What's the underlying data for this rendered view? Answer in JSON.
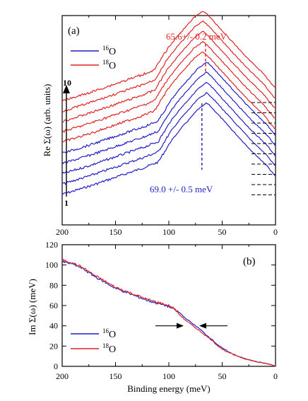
{
  "colors": {
    "o16": "#1f1fc8",
    "o18": "#e02424",
    "axis": "#000000",
    "baseline": "#000000"
  },
  "chart_data": [
    {
      "panel_label": "(a)",
      "type": "line",
      "xlabel": "",
      "ylabel": "Re Σ(ω) (arb. units)",
      "xlim": [
        200,
        0
      ],
      "x_ticks": [
        200,
        150,
        100,
        50,
        0
      ],
      "y_ticks": [],
      "legend": {
        "placement": "top-left",
        "entries": [
          {
            "isotope_mass": "16",
            "element": "O",
            "color_key": "o16"
          },
          {
            "isotope_mass": "18",
            "element": "O",
            "color_key": "o18"
          }
        ]
      },
      "annotations": {
        "o18_peak": {
          "text": "65.6+/- 0.2 meV",
          "energy": 65.6
        },
        "o16_peak": {
          "text": "69.0 +/- 0.5 meV",
          "energy": 69.0
        },
        "index_top": "10",
        "index_bottom": "1"
      },
      "x": [
        200,
        175,
        150,
        125,
        112,
        100,
        90,
        80,
        75,
        70,
        67,
        65,
        60,
        50,
        40,
        25,
        10,
        0
      ],
      "shape": [
        0.0,
        0.09,
        0.19,
        0.29,
        0.35,
        0.58,
        0.73,
        0.86,
        0.93,
        0.97,
        1.0,
        0.99,
        0.93,
        0.8,
        0.67,
        0.48,
        0.31,
        0.16
      ],
      "series": [
        {
          "index": 1,
          "isotope": "16O",
          "color_key": "o16",
          "offset": 0,
          "peak": 69.0
        },
        {
          "index": 2,
          "isotope": "16O",
          "color_key": "o16",
          "offset": 1,
          "peak": 69.0
        },
        {
          "index": 3,
          "isotope": "16O",
          "color_key": "o16",
          "offset": 2,
          "peak": 69.0
        },
        {
          "index": 4,
          "isotope": "16O",
          "color_key": "o16",
          "offset": 3,
          "peak": 69.0
        },
        {
          "index": 5,
          "isotope": "16O",
          "color_key": "o16",
          "offset": 4,
          "peak": 69.0
        },
        {
          "index": 6,
          "isotope": "18O",
          "color_key": "o18",
          "offset": 5,
          "peak": 65.6
        },
        {
          "index": 7,
          "isotope": "18O",
          "color_key": "o18",
          "offset": 6,
          "peak": 65.6
        },
        {
          "index": 8,
          "isotope": "18O",
          "color_key": "o18",
          "offset": 7,
          "peak": 65.6
        },
        {
          "index": 9,
          "isotope": "18O",
          "color_key": "o18",
          "offset": 8,
          "peak": 65.6
        },
        {
          "index": 10,
          "isotope": "18O",
          "color_key": "o18",
          "offset": 9,
          "peak": 65.6
        }
      ]
    },
    {
      "panel_label": "(b)",
      "type": "line",
      "xlabel": "Binding energy (meV)",
      "ylabel": "Im Σ(ω) (meV)",
      "xlim": [
        200,
        0
      ],
      "ylim": [
        0,
        120
      ],
      "x_ticks": [
        200,
        150,
        100,
        50,
        0
      ],
      "y_ticks": [
        0,
        20,
        40,
        60,
        80,
        100,
        120
      ],
      "legend": {
        "placement": "bottom-left",
        "entries": [
          {
            "isotope_mass": "16",
            "element": "O",
            "color_key": "o16"
          },
          {
            "isotope_mass": "18",
            "element": "O",
            "color_key": "o18"
          }
        ]
      },
      "arrows_at_y": 40,
      "series": [
        {
          "isotope": "16O",
          "color_key": "o16",
          "x": [
            200,
            190,
            180,
            170,
            160,
            150,
            140,
            130,
            120,
            110,
            100,
            95,
            90,
            85,
            80,
            75,
            70,
            65,
            60,
            55,
            50,
            45,
            40,
            35,
            30,
            25,
            20,
            15,
            10,
            5,
            0
          ],
          "y": [
            103,
            101,
            96,
            89,
            83,
            77,
            73,
            69,
            65,
            62,
            59,
            56,
            53,
            48,
            44,
            40,
            36,
            31,
            27,
            22,
            18,
            15,
            12,
            10,
            8,
            6.5,
            5,
            4,
            3,
            2,
            0
          ]
        },
        {
          "isotope": "18O",
          "color_key": "o18",
          "x": [
            200,
            190,
            180,
            170,
            160,
            150,
            140,
            130,
            120,
            110,
            100,
            95,
            90,
            85,
            80,
            75,
            70,
            65,
            60,
            55,
            50,
            45,
            40,
            35,
            30,
            25,
            20,
            15,
            10,
            5,
            0
          ],
          "y": [
            105,
            102,
            97,
            90,
            84,
            78,
            74,
            70,
            66,
            63,
            60,
            57,
            51,
            46,
            42,
            38,
            34,
            30,
            26,
            21,
            17,
            14,
            12,
            10,
            8,
            6.5,
            5,
            4,
            3,
            2,
            0
          ]
        }
      ]
    }
  ]
}
